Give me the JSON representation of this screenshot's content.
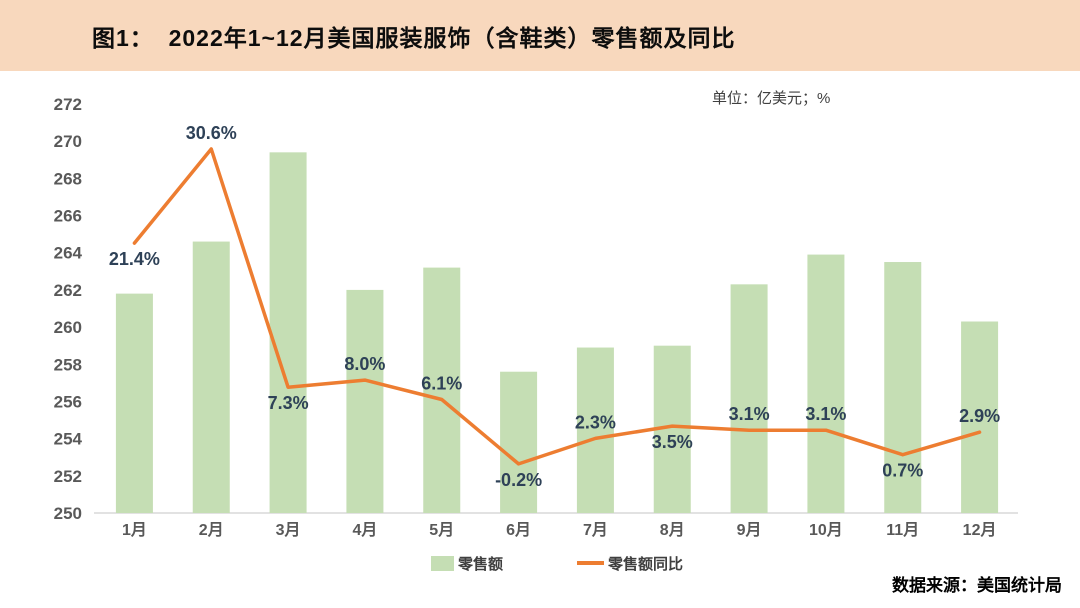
{
  "header": {
    "title": "图1：  2022年1~12月美国服装服饰（含鞋类）零售额及同比"
  },
  "chart": {
    "unit_label": "单位：亿美元；%",
    "source": "数据来源：美国统计局"
  },
  "legend": {
    "bar_label": "零售额",
    "line_label": "零售额同比"
  },
  "colors": {
    "header_bg": "#f8d8bd",
    "bar_fill": "#c5deb4",
    "line_stroke": "#ed7d31",
    "data_label": "#2e4157",
    "axis_text": "#595959",
    "axis_line": "#d9d9d9"
  },
  "chart_data": {
    "type": "bar+line combo",
    "title": "2022年1~12月美国服装服饰（含鞋类）零售额及同比",
    "categories": [
      "1月",
      "2月",
      "3月",
      "4月",
      "5月",
      "6月",
      "7月",
      "8月",
      "9月",
      "10月",
      "11月",
      "12月"
    ],
    "series": [
      {
        "name": "零售额",
        "type": "bar",
        "unit": "亿美元",
        "values": [
          261.8,
          264.6,
          269.4,
          262.0,
          263.2,
          257.6,
          258.9,
          259.0,
          262.3,
          263.9,
          263.5,
          260.3
        ]
      },
      {
        "name": "零售额同比",
        "type": "line",
        "unit": "%",
        "values": [
          21.4,
          30.6,
          7.3,
          8.0,
          6.1,
          -0.2,
          2.3,
          3.5,
          3.1,
          3.1,
          0.7,
          2.9
        ],
        "data_labels": [
          "21.4%",
          "30.6%",
          "7.3%",
          "8.0%",
          "6.1%",
          "-0.2%",
          "2.3%",
          "3.5%",
          "3.1%",
          "3.1%",
          "0.7%",
          "2.9%"
        ],
        "label_positions": [
          "below",
          "above",
          "below",
          "above",
          "above",
          "below",
          "above",
          "below",
          "above",
          "above",
          "below",
          "above"
        ]
      }
    ],
    "y_axis": {
      "min": 250,
      "max": 272,
      "step": 2,
      "ticks": [
        "250",
        "252",
        "254",
        "256",
        "258",
        "260",
        "262",
        "264",
        "266",
        "268",
        "270",
        "272"
      ]
    },
    "grid": "off",
    "legend_position": "bottom-center"
  }
}
